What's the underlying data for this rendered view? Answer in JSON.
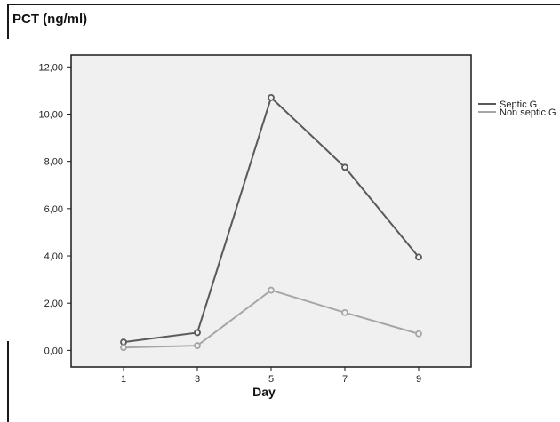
{
  "chart_data": {
    "type": "line",
    "title": "PCT (ng/ml)",
    "xlabel": "Day",
    "ylabel": "",
    "categories": [
      "1",
      "3",
      "5",
      "7",
      "9"
    ],
    "y_ticks": [
      "0,00",
      "2,00",
      "4,00",
      "6,00",
      "8,00",
      "10,00",
      "12,00"
    ],
    "ylim": [
      -0.7,
      12.5
    ],
    "grid": false,
    "legend_position": "right",
    "series": [
      {
        "name": "Septic G",
        "color": "#5a5a5a",
        "values": [
          0.35,
          0.75,
          10.7,
          7.75,
          3.95
        ]
      },
      {
        "name": "Non septic G",
        "color": "#a6a6a6",
        "values": [
          0.12,
          0.2,
          2.55,
          1.6,
          0.7
        ]
      }
    ]
  },
  "colors": {
    "plot_background": "#f0f0f0",
    "axis": "#1a1a1a"
  }
}
